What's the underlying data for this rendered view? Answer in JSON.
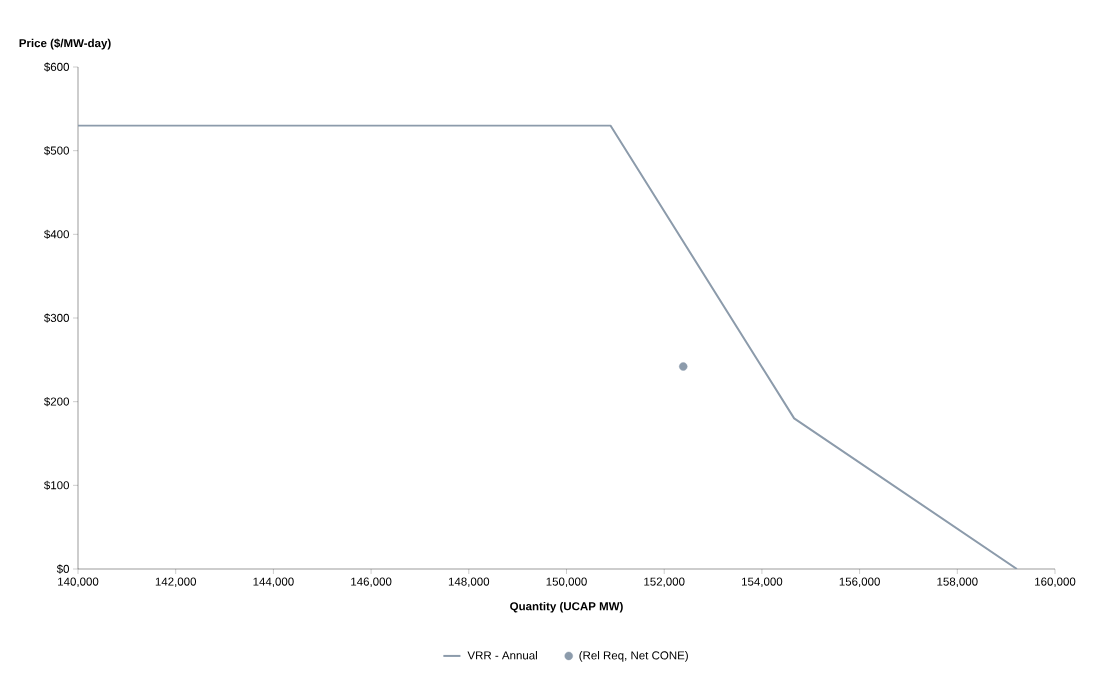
{
  "chart_data": {
    "type": "line",
    "xlabel": "Quantity (UCAP MW)",
    "ylabel": "Price ($/MW-day)",
    "xlim": [
      140000,
      160000
    ],
    "ylim": [
      0,
      600
    ],
    "xticks": [
      {
        "value": 140000,
        "label": "140,000"
      },
      {
        "value": 142000,
        "label": "142,000"
      },
      {
        "value": 144000,
        "label": "144,000"
      },
      {
        "value": 146000,
        "label": "146,000"
      },
      {
        "value": 148000,
        "label": "148,000"
      },
      {
        "value": 150000,
        "label": "150,000"
      },
      {
        "value": 152000,
        "label": "152,000"
      },
      {
        "value": 154000,
        "label": "154,000"
      },
      {
        "value": 156000,
        "label": "156,000"
      },
      {
        "value": 158000,
        "label": "158,000"
      },
      {
        "value": 160000,
        "label": "160,000"
      }
    ],
    "yticks": [
      {
        "value": 0,
        "label": "$0"
      },
      {
        "value": 100,
        "label": "$100"
      },
      {
        "value": 200,
        "label": "$200"
      },
      {
        "value": 300,
        "label": "$300"
      },
      {
        "value": 400,
        "label": "$400"
      },
      {
        "value": 500,
        "label": "$500"
      },
      {
        "value": 600,
        "label": "$600"
      }
    ],
    "grid": false,
    "legend": "bottom",
    "series": [
      {
        "name": "VRR - Annual",
        "color": "#8c9bab",
        "marker": "none",
        "x": [
          140000,
          150900,
          154660,
          159220
        ],
        "values": [
          530,
          530,
          180,
          0
        ]
      },
      {
        "name": "(Rel Req, Net CONE)",
        "type": "scatter",
        "color": "#8c9bab",
        "marker": "circle",
        "x": [
          152390
        ],
        "values": [
          242
        ]
      }
    ]
  }
}
